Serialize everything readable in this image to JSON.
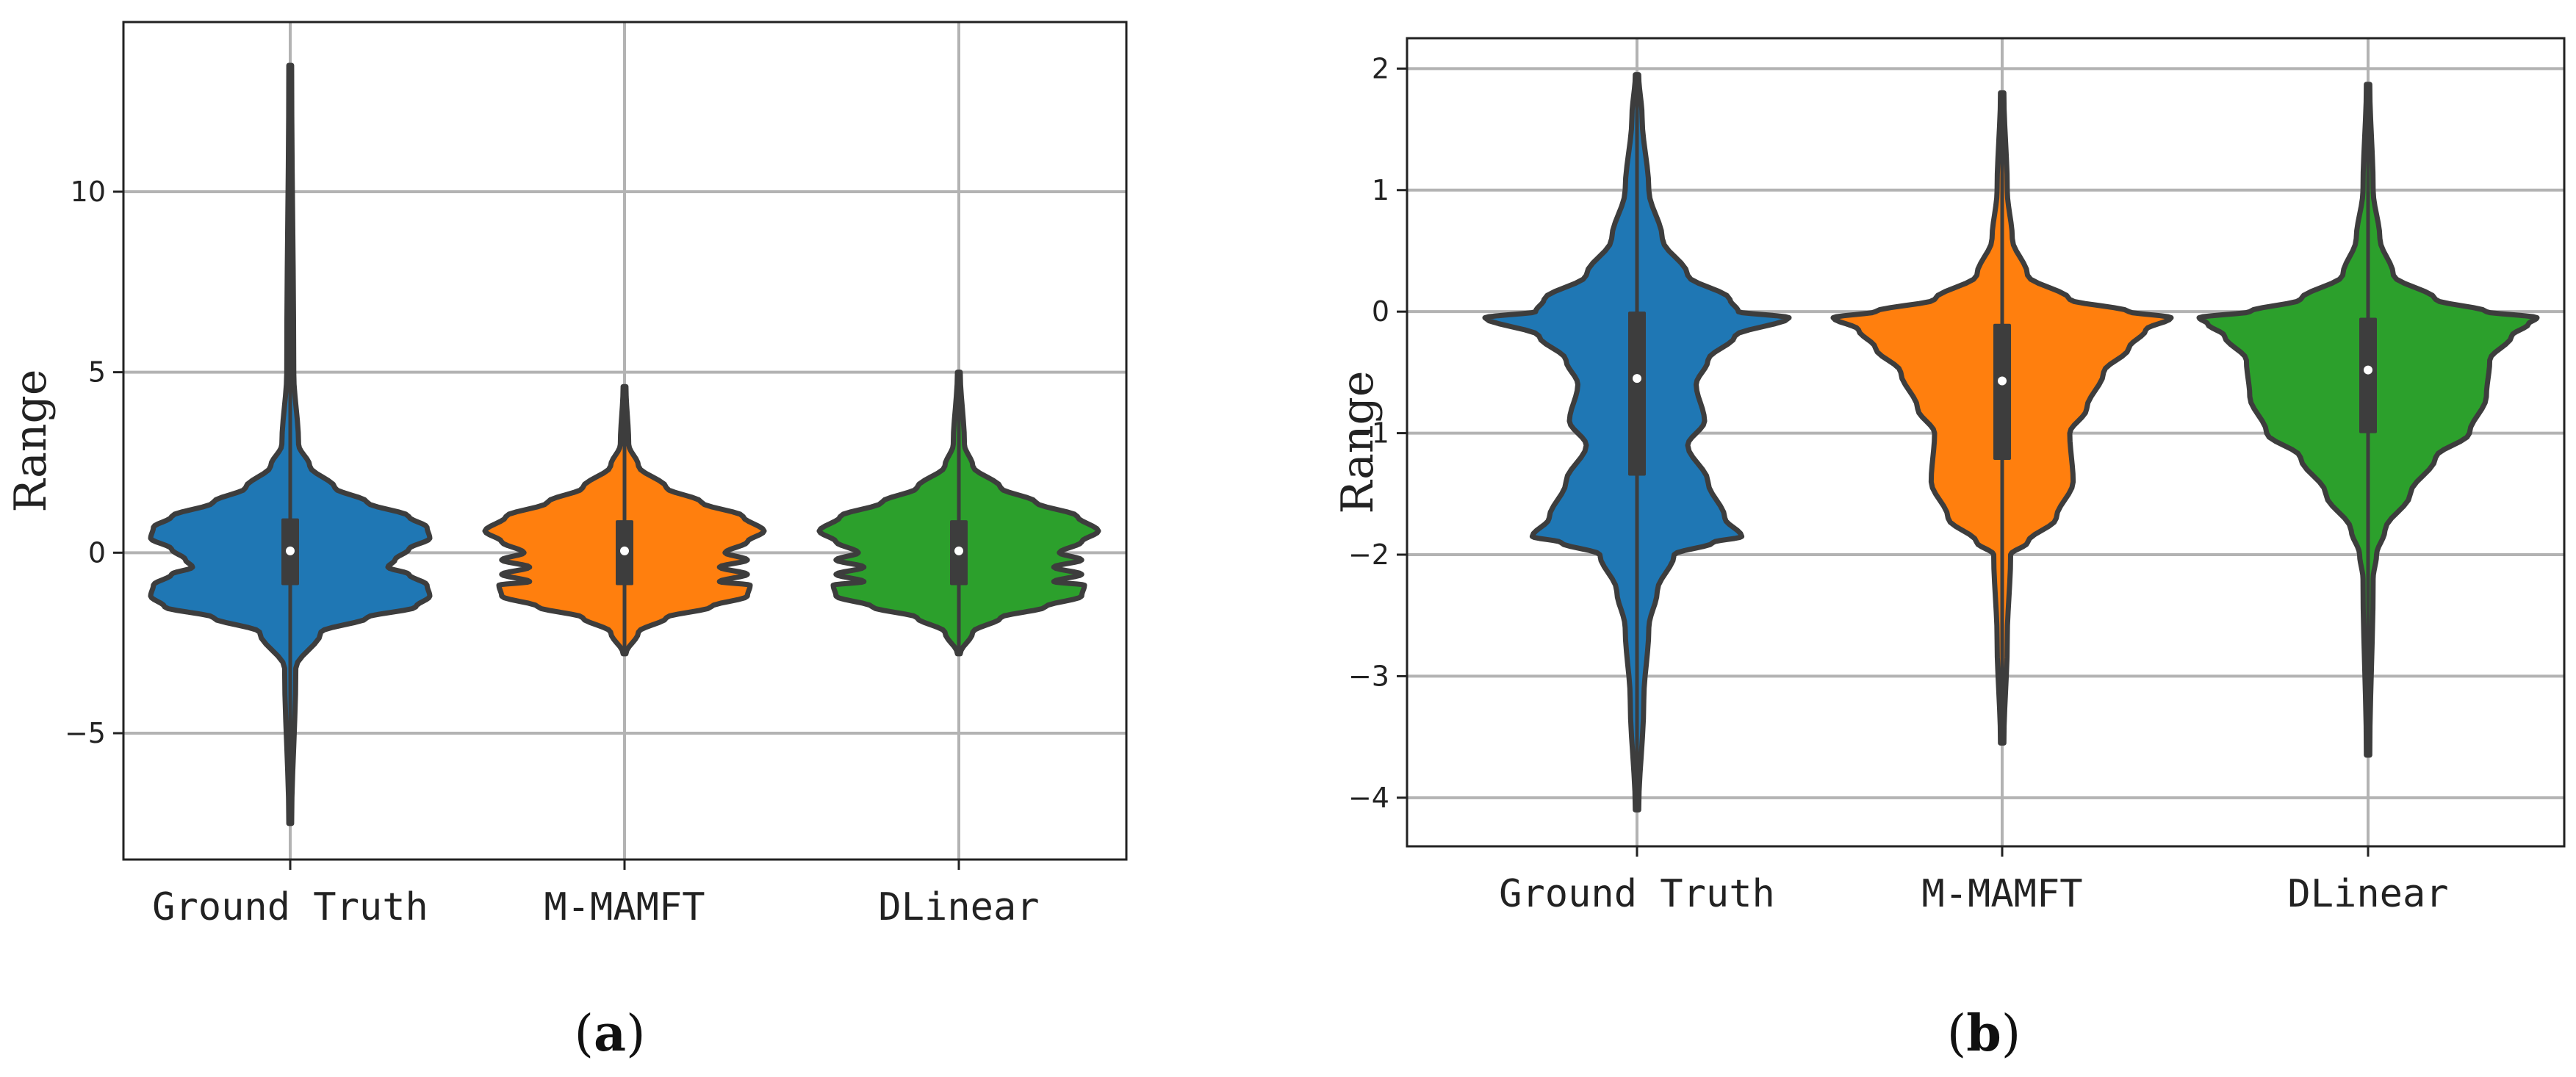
{
  "chart_data": [
    {
      "type": "violin",
      "panel_label": "a",
      "ylabel": "Range",
      "yticks": [
        -5,
        0,
        5,
        10
      ],
      "ylim": [
        -8.5,
        14.7
      ],
      "grid": true,
      "categories": [
        "Ground Truth",
        "M-MAMFT",
        "DLinear"
      ],
      "series": [
        {
          "color": "#1f77b4",
          "min": -7.5,
          "q1": -0.9,
          "median": 0.05,
          "q3": 0.95,
          "max": 13.5,
          "profile": [
            [
              -7.5,
              0.01
            ],
            [
              -3.2,
              0.04
            ],
            [
              -2.2,
              0.22
            ],
            [
              -1.8,
              0.55
            ],
            [
              -1.5,
              0.9
            ],
            [
              -1.2,
              1.0
            ],
            [
              -0.9,
              0.98
            ],
            [
              -0.6,
              0.85
            ],
            [
              -0.4,
              0.7
            ],
            [
              -0.2,
              0.75
            ],
            [
              0.1,
              0.85
            ],
            [
              0.4,
              1.0
            ],
            [
              0.7,
              0.98
            ],
            [
              1.0,
              0.85
            ],
            [
              1.4,
              0.55
            ],
            [
              1.8,
              0.32
            ],
            [
              2.4,
              0.14
            ],
            [
              3.0,
              0.06
            ],
            [
              5.0,
              0.025
            ],
            [
              13.5,
              0.01
            ]
          ]
        },
        {
          "color": "#ff7f0e",
          "min": -2.8,
          "q1": -0.9,
          "median": 0.05,
          "q3": 0.9,
          "max": 4.6,
          "profile": [
            [
              -2.8,
              0.01
            ],
            [
              -2.2,
              0.1
            ],
            [
              -1.8,
              0.3
            ],
            [
              -1.5,
              0.62
            ],
            [
              -1.2,
              0.88
            ],
            [
              -0.9,
              0.9
            ],
            [
              -0.8,
              0.68
            ],
            [
              -0.6,
              0.88
            ],
            [
              -0.4,
              0.68
            ],
            [
              -0.2,
              0.88
            ],
            [
              0,
              0.72
            ],
            [
              0.3,
              0.88
            ],
            [
              0.6,
              1.0
            ],
            [
              1.0,
              0.85
            ],
            [
              1.4,
              0.55
            ],
            [
              1.8,
              0.3
            ],
            [
              2.4,
              0.1
            ],
            [
              3.0,
              0.03
            ],
            [
              4.6,
              0.01
            ]
          ]
        },
        {
          "color": "#2ca02c",
          "min": -2.8,
          "q1": -0.9,
          "median": 0.05,
          "q3": 0.9,
          "max": 5.0,
          "profile": [
            [
              -2.8,
              0.01
            ],
            [
              -2.2,
              0.1
            ],
            [
              -1.8,
              0.3
            ],
            [
              -1.5,
              0.62
            ],
            [
              -1.2,
              0.88
            ],
            [
              -0.9,
              0.9
            ],
            [
              -0.8,
              0.68
            ],
            [
              -0.6,
              0.88
            ],
            [
              -0.4,
              0.68
            ],
            [
              -0.2,
              0.88
            ],
            [
              0,
              0.72
            ],
            [
              0.3,
              0.88
            ],
            [
              0.6,
              1.0
            ],
            [
              1.0,
              0.85
            ],
            [
              1.4,
              0.55
            ],
            [
              1.8,
              0.3
            ],
            [
              2.4,
              0.1
            ],
            [
              3.0,
              0.04
            ],
            [
              5.0,
              0.01
            ]
          ]
        }
      ]
    },
    {
      "type": "violin",
      "panel_label": "b",
      "ylabel": "Range",
      "yticks": [
        -4,
        -3,
        -2,
        -1,
        0,
        1,
        2
      ],
      "ylim": [
        -4.4,
        2.25
      ],
      "grid": true,
      "categories": [
        "Ground Truth",
        "M-MAMFT",
        "DLinear"
      ],
      "series": [
        {
          "color": "#1f77b4",
          "min": -4.1,
          "q1": -1.35,
          "median": -0.55,
          "q3": 0.0,
          "max": 1.95,
          "profile": [
            [
              -4.1,
              0.01
            ],
            [
              -3.2,
              0.04
            ],
            [
              -2.6,
              0.07
            ],
            [
              -2.3,
              0.12
            ],
            [
              -2.0,
              0.22
            ],
            [
              -1.9,
              0.45
            ],
            [
              -1.85,
              0.62
            ],
            [
              -1.7,
              0.52
            ],
            [
              -1.4,
              0.42
            ],
            [
              -1.1,
              0.3
            ],
            [
              -0.9,
              0.4
            ],
            [
              -0.6,
              0.35
            ],
            [
              -0.4,
              0.42
            ],
            [
              -0.2,
              0.58
            ],
            [
              -0.05,
              0.9
            ],
            [
              0.0,
              0.6
            ],
            [
              0.1,
              0.55
            ],
            [
              0.3,
              0.3
            ],
            [
              0.6,
              0.15
            ],
            [
              1.0,
              0.07
            ],
            [
              1.6,
              0.03
            ],
            [
              1.95,
              0.01
            ]
          ]
        },
        {
          "color": "#ff7f0e",
          "min": -3.55,
          "q1": -1.22,
          "median": -0.57,
          "q3": -0.1,
          "max": 1.8,
          "profile": [
            [
              -3.55,
              0.01
            ],
            [
              -2.7,
              0.03
            ],
            [
              -2.0,
              0.05
            ],
            [
              -1.9,
              0.15
            ],
            [
              -1.7,
              0.32
            ],
            [
              -1.4,
              0.42
            ],
            [
              -1.0,
              0.4
            ],
            [
              -0.8,
              0.5
            ],
            [
              -0.5,
              0.6
            ],
            [
              -0.3,
              0.75
            ],
            [
              -0.15,
              0.85
            ],
            [
              -0.05,
              1.0
            ],
            [
              0.0,
              0.75
            ],
            [
              0.1,
              0.4
            ],
            [
              0.3,
              0.15
            ],
            [
              0.6,
              0.06
            ],
            [
              1.0,
              0.03
            ],
            [
              1.8,
              0.01
            ]
          ]
        },
        {
          "color": "#2ca02c",
          "min": -3.65,
          "q1": -1.0,
          "median": -0.48,
          "q3": -0.05,
          "max": 1.87,
          "profile": [
            [
              -3.65,
              0.01
            ],
            [
              -2.2,
              0.03
            ],
            [
              -2.0,
              0.05
            ],
            [
              -1.8,
              0.1
            ],
            [
              -1.5,
              0.25
            ],
            [
              -1.2,
              0.4
            ],
            [
              -1.0,
              0.6
            ],
            [
              -0.7,
              0.7
            ],
            [
              -0.4,
              0.72
            ],
            [
              -0.2,
              0.85
            ],
            [
              -0.1,
              0.95
            ],
            [
              -0.05,
              1.0
            ],
            [
              0.0,
              0.7
            ],
            [
              0.1,
              0.4
            ],
            [
              0.3,
              0.15
            ],
            [
              0.6,
              0.07
            ],
            [
              1.0,
              0.03
            ],
            [
              1.87,
              0.01
            ]
          ]
        }
      ]
    }
  ]
}
